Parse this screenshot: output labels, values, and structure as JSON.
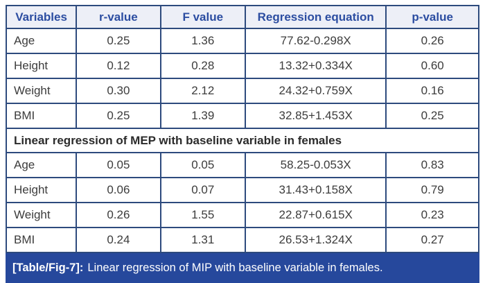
{
  "table": {
    "columns": [
      "Variables",
      "r-value",
      "F value",
      "Regression equation",
      "p-value"
    ],
    "mip_rows": [
      {
        "variable": "Age",
        "r_value": "0.25",
        "f_value": "1.36",
        "equation": "77.62-0.298X",
        "p_value": "0.26"
      },
      {
        "variable": "Height",
        "r_value": "0.12",
        "f_value": "0.28",
        "equation": "13.32+0.334X",
        "p_value": "0.60"
      },
      {
        "variable": "Weight",
        "r_value": "0.30",
        "f_value": "2.12",
        "equation": "24.32+0.759X",
        "p_value": "0.16"
      },
      {
        "variable": "BMI",
        "r_value": "0.25",
        "f_value": "1.39",
        "equation": "32.85+1.453X",
        "p_value": "0.25"
      }
    ],
    "section_header": "Linear regression of MEP with baseline variable in females",
    "mep_rows": [
      {
        "variable": "Age",
        "r_value": "0.05",
        "f_value": "0.05",
        "equation": "58.25-0.053X",
        "p_value": "0.83"
      },
      {
        "variable": "Height",
        "r_value": "0.06",
        "f_value": "0.07",
        "equation": "31.43+0.158X",
        "p_value": "0.79"
      },
      {
        "variable": "Weight",
        "r_value": "0.26",
        "f_value": "1.55",
        "equation": "22.87+0.615X",
        "p_value": "0.23"
      },
      {
        "variable": "BMI",
        "r_value": "0.24",
        "f_value": "1.31",
        "equation": "26.53+1.324X",
        "p_value": "0.27"
      }
    ]
  },
  "caption": {
    "label": "[Table/Fig-7]:",
    "text": "Linear regression of MIP with baseline variable in females."
  },
  "colors": {
    "header_bg": "#edeff7",
    "header_text": "#2c4da1",
    "border": "#2d4a7d",
    "body_text": "#3c3c3c",
    "caption_bg": "#26489c",
    "caption_text": "#ffffff"
  }
}
